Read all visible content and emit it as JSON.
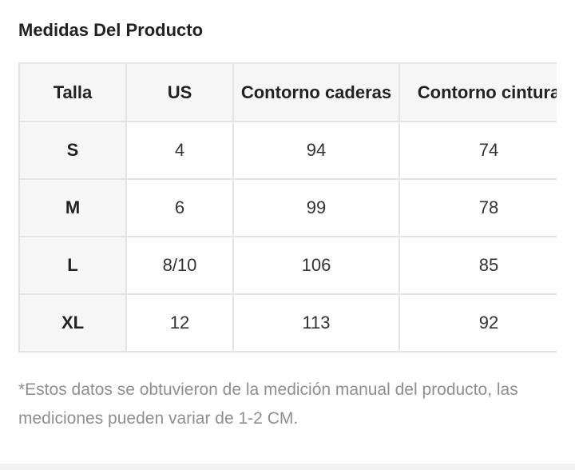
{
  "section": {
    "title": "Medidas Del Producto"
  },
  "table": {
    "headers": [
      "Talla",
      "US",
      "Contorno caderas",
      "Contorno cintura"
    ],
    "rows": [
      {
        "talla": "S",
        "us": "4",
        "caderas": "94",
        "cintura": "74"
      },
      {
        "talla": "M",
        "us": "6",
        "caderas": "99",
        "cintura": "78"
      },
      {
        "talla": "L",
        "us": "8/10",
        "caderas": "106",
        "cintura": "85"
      },
      {
        "talla": "XL",
        "us": "12",
        "caderas": "113",
        "cintura": "92"
      }
    ]
  },
  "note": {
    "text": "*Estos datos se obtuvieron de la medición manual del producto, las mediciones pueden variar de 1-2 CM."
  },
  "colors": {
    "border": "#e4e4e4",
    "header_bg": "#f6f6f6",
    "note_text": "#8f8f8f"
  }
}
